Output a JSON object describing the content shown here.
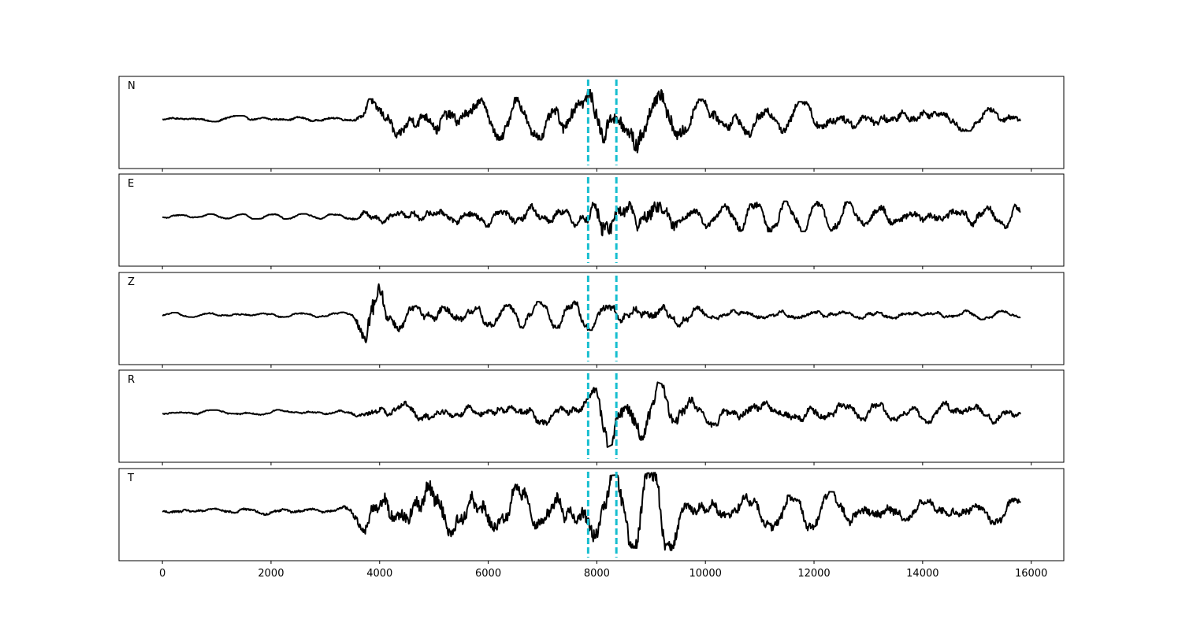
{
  "chart_data": {
    "type": "line",
    "title": "",
    "xlabel": "",
    "ylabel": "",
    "xlim": [
      -800,
      16600
    ],
    "xticks": [
      0,
      2000,
      4000,
      6000,
      8000,
      10000,
      12000,
      14000,
      16000
    ],
    "xtick_labels": [
      "0",
      "2000",
      "4000",
      "6000",
      "8000",
      "10000",
      "12000",
      "14000",
      "16000"
    ],
    "x_range": [
      0,
      15800
    ],
    "grid": false,
    "legend": "none",
    "line_color": "#000000",
    "marker_color": "#17becf",
    "markers": [
      7840,
      8360
    ],
    "panels": [
      {
        "label": "N",
        "envelope": [
          [
            0,
            0.06
          ],
          [
            3300,
            0.08
          ],
          [
            3700,
            0.15
          ],
          [
            3800,
            0.45
          ],
          [
            5000,
            0.5
          ],
          [
            7000,
            0.48
          ],
          [
            7800,
            0.6
          ],
          [
            8100,
            0.85
          ],
          [
            9000,
            0.85
          ],
          [
            9400,
            0.8
          ],
          [
            9700,
            0.45
          ],
          [
            12000,
            0.38
          ],
          [
            12500,
            0.35
          ],
          [
            15800,
            0.25
          ]
        ]
      },
      {
        "label": "E",
        "envelope": [
          [
            0,
            0.05
          ],
          [
            3400,
            0.06
          ],
          [
            3800,
            0.2
          ],
          [
            5000,
            0.3
          ],
          [
            7800,
            0.3
          ],
          [
            8100,
            0.95
          ],
          [
            8300,
            0.6
          ],
          [
            9000,
            0.75
          ],
          [
            9800,
            0.3
          ],
          [
            11000,
            0.35
          ],
          [
            15800,
            0.3
          ]
        ]
      },
      {
        "label": "Z",
        "envelope": [
          [
            0,
            0.05
          ],
          [
            3500,
            0.06
          ],
          [
            3700,
            0.9
          ],
          [
            3900,
            0.9
          ],
          [
            4200,
            0.4
          ],
          [
            5000,
            0.3
          ],
          [
            7500,
            0.3
          ],
          [
            7800,
            0.35
          ],
          [
            8400,
            0.35
          ],
          [
            9500,
            0.3
          ],
          [
            10500,
            0.15
          ],
          [
            15800,
            0.1
          ]
        ]
      },
      {
        "label": "R",
        "envelope": [
          [
            0,
            0.05
          ],
          [
            3400,
            0.07
          ],
          [
            4000,
            0.25
          ],
          [
            7800,
            0.3
          ],
          [
            8100,
            0.85
          ],
          [
            8500,
            0.6
          ],
          [
            9000,
            0.75
          ],
          [
            9800,
            0.35
          ],
          [
            15800,
            0.25
          ]
        ]
      },
      {
        "label": "T",
        "envelope": [
          [
            0,
            0.1
          ],
          [
            3300,
            0.1
          ],
          [
            3800,
            0.6
          ],
          [
            4800,
            0.8
          ],
          [
            7000,
            0.55
          ],
          [
            8100,
            0.8
          ],
          [
            9400,
            0.9
          ],
          [
            9700,
            0.45
          ],
          [
            12000,
            0.45
          ],
          [
            15800,
            0.3
          ]
        ]
      }
    ]
  }
}
